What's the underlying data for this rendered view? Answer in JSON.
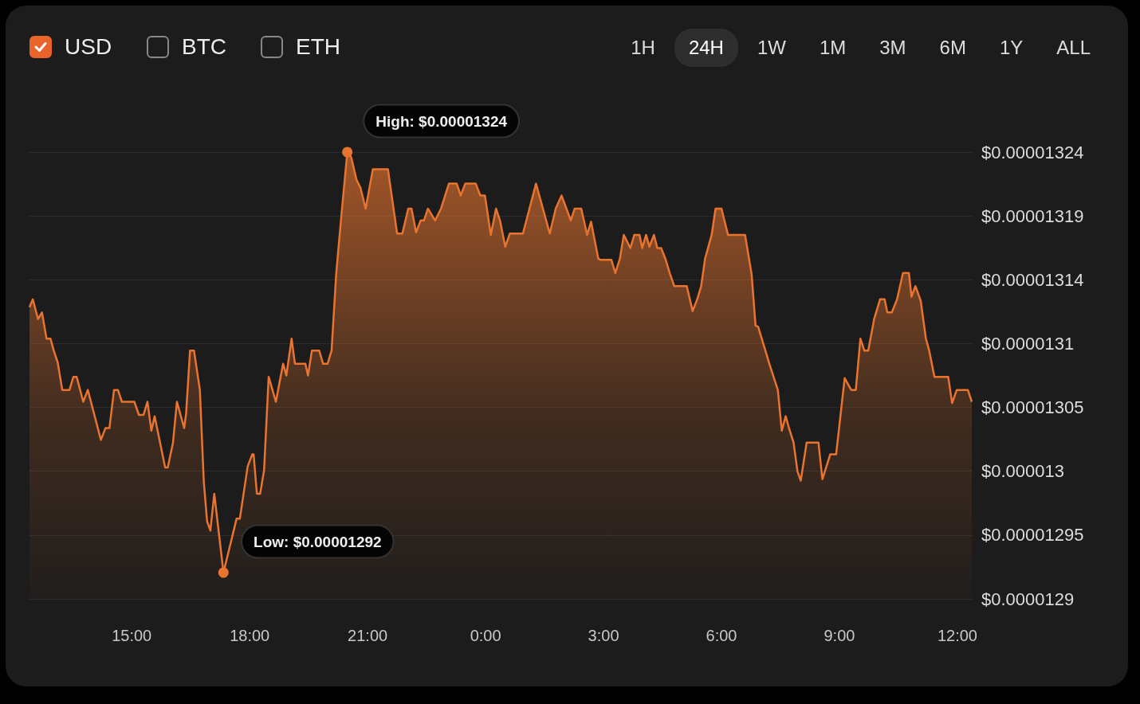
{
  "chart_data": {
    "type": "area",
    "annotations": [
      "USD",
      "BTC",
      "ETH",
      "1H",
      "24H",
      "1W",
      "1M",
      "3M",
      "6M",
      "1Y",
      "ALL",
      {
        "text": "High: $0.00001324",
        "x": "--01-01T20:29",
        "y": 1.324e-05
      },
      {
        "text": "Low: $0.00001292",
        "x": "--01-01T17:20",
        "y": 1.292e-05
      }
    ],
    "x": [
      "--01-01T12:24",
      "--01-01T12:29",
      "--01-01T12:37",
      "--01-01T12:43",
      "--01-01T12:50",
      "--01-01T12:56",
      "--01-01T13:01",
      "--01-01T13:07",
      "--01-01T13:14",
      "--01-01T13:25",
      "--01-01T13:31",
      "--01-01T13:36",
      "--01-01T13:46",
      "--01-01T13:53",
      "--01-01T14:13",
      "--01-01T14:20",
      "--01-01T14:26",
      "--01-01T14:33",
      "--01-01T14:39",
      "--01-01T14:45",
      "--01-01T15:04",
      "--01-01T15:11",
      "--01-01T15:18",
      "--01-01T15:24",
      "--01-01T15:30",
      "--01-01T15:35",
      "--01-01T15:42",
      "--01-01T15:51",
      "--01-01T15:55",
      "--01-01T16:03",
      "--01-01T16:09",
      "--01-01T16:20",
      "--01-01T16:23",
      "--01-01T16:29",
      "--01-01T16:35",
      "--01-01T16:44",
      "--01-01T16:50",
      "--01-01T16:55",
      "--01-01T17:00",
      "--01-01T17:06",
      "--01-01T17:13",
      "--01-01T17:20",
      "--01-01T17:40",
      "--01-01T17:45",
      "--01-01T17:57",
      "--01-01T18:04",
      "--01-01T18:06",
      "--01-01T18:11",
      "--01-01T18:16",
      "--01-01T18:22",
      "--01-01T18:29",
      "--01-01T18:40",
      "--01-01T18:51",
      "--01-01T18:56",
      "--01-01T19:04",
      "--01-01T19:09",
      "--01-01T19:25",
      "--01-01T19:29",
      "--01-01T19:35",
      "--01-01T19:46",
      "--01-01T19:52",
      "--01-01T19:59",
      "--01-01T20:05",
      "--01-01T20:12",
      "--01-01T20:20",
      "--01-01T20:29",
      "--01-01T20:35",
      "--01-01T20:43",
      "--01-01T20:49",
      "--01-01T20:57",
      "--01-01T21:08",
      "--01-01T21:31",
      "--01-01T21:45",
      "--01-01T21:53",
      "--01-01T22:02",
      "--01-01T22:07",
      "--01-01T22:14",
      "--01-01T22:21",
      "--01-01T22:26",
      "--01-01T22:32",
      "--01-01T22:43",
      "--01-01T22:52",
      "--01-01T23:04",
      "--01-01T23:16",
      "--01-01T23:22",
      "--01-01T23:29",
      "--01-01T23:45",
      "--01-01T23:52",
      "--01-01T23:59",
      "--01-02T00:08",
      "--01-02T00:16",
      "--01-02T00:22",
      "--01-02T00:30",
      "--01-02T00:37",
      "--01-02T00:57",
      "--01-02T01:17",
      "--01-02T01:38",
      "--01-02T01:47",
      "--01-02T01:56",
      "--01-02T02:10",
      "--01-02T02:16",
      "--01-02T02:26",
      "--01-02T02:35",
      "--01-02T02:41",
      "--01-02T02:52",
      "--01-02T02:55",
      "--01-02T03:12",
      "--01-02T03:18",
      "--01-02T03:25",
      "--01-02T03:31",
      "--01-02T03:41",
      "--01-02T03:47",
      "--01-02T03:55",
      "--01-02T03:59",
      "--01-02T04:05",
      "--01-02T04:10",
      "--01-02T04:17",
      "--01-02T04:22",
      "--01-02T04:28",
      "--01-02T04:35",
      "--01-02T04:41",
      "--01-02T04:48",
      "--01-02T05:07",
      "--01-02T05:16",
      "--01-02T05:23",
      "--01-02T05:29",
      "--01-02T05:35",
      "--01-02T05:45",
      "--01-02T05:51",
      "--01-02T06:00",
      "--01-02T06:10",
      "--01-02T06:36",
      "--01-02T06:46",
      "--01-02T06:52",
      "--01-02T06:56",
      "--01-02T07:07",
      "--01-02T07:13",
      "--01-02T07:26",
      "--01-02T07:32",
      "--01-02T07:38",
      "--01-02T07:43",
      "--01-02T07:50",
      "--01-02T07:56",
      "--01-02T08:01",
      "--01-02T08:10",
      "--01-02T08:28",
      "--01-02T08:34",
      "--01-02T08:46",
      "--01-02T08:55",
      "--01-02T09:08",
      "--01-02T09:18",
      "--01-02T09:25",
      "--01-02T09:32",
      "--01-02T09:38",
      "--01-02T09:44",
      "--01-02T09:53",
      "--01-02T10:02",
      "--01-02T10:09",
      "--01-02T10:13",
      "--01-02T10:20",
      "--01-02T10:28",
      "--01-02T10:37",
      "--01-02T10:46",
      "--01-02T10:50",
      "--01-02T10:56",
      "--01-02T11:04",
      "--01-02T11:12",
      "--01-02T11:17",
      "--01-02T11:25",
      "--01-02T11:46",
      "--01-02T11:52",
      "--01-02T11:59",
      "--01-02T12:16",
      "--01-02T12:22"
    ],
    "series": [
      {
        "color": "#e8742f",
        "values": [
          1.3122e-05,
          1.3128e-05,
          1.3113e-05,
          1.3118e-05,
          1.3098e-05,
          1.3098e-05,
          1.3089e-05,
          1.308e-05,
          1.3059e-05,
          1.3059e-05,
          1.3069e-05,
          1.3069e-05,
          1.305e-05,
          1.3059e-05,
          1.3021e-05,
          1.303e-05,
          1.303e-05,
          1.3059e-05,
          1.3059e-05,
          1.305e-05,
          1.305e-05,
          1.304e-05,
          1.304e-05,
          1.305e-05,
          1.3028e-05,
          1.3039e-05,
          1.3022e-05,
          1.3e-05,
          1.3e-05,
          1.3019e-05,
          1.305e-05,
          1.303e-05,
          1.3041e-05,
          1.3089e-05,
          1.3089e-05,
          1.3059e-05,
          1.2989e-05,
          1.2959e-05,
          1.2952e-05,
          1.298e-05,
          1.295e-05,
          1.292e-05,
          1.2961e-05,
          1.2961e-05,
          1.3001e-05,
          1.301e-05,
          1.301e-05,
          1.298e-05,
          1.298e-05,
          1.2998e-05,
          1.3069e-05,
          1.305e-05,
          1.3079e-05,
          1.307e-05,
          1.3098e-05,
          1.3079e-05,
          1.3079e-05,
          1.307e-05,
          1.3089e-05,
          1.3089e-05,
          1.3079e-05,
          1.3079e-05,
          1.3089e-05,
          1.3147e-05,
          1.3192e-05,
          1.324e-05,
          1.3236e-05,
          1.3219e-05,
          1.3213e-05,
          1.3197e-05,
          1.3227e-05,
          1.3227e-05,
          1.3178e-05,
          1.3178e-05,
          1.3197e-05,
          1.3197e-05,
          1.3179e-05,
          1.3188e-05,
          1.3188e-05,
          1.3197e-05,
          1.3188e-05,
          1.3197e-05,
          1.3216e-05,
          1.3216e-05,
          1.3207e-05,
          1.3216e-05,
          1.3216e-05,
          1.3207e-05,
          1.3207e-05,
          1.3177e-05,
          1.3197e-05,
          1.3188e-05,
          1.3168e-05,
          1.3178e-05,
          1.3178e-05,
          1.3216e-05,
          1.3178e-05,
          1.3197e-05,
          1.3207e-05,
          1.3188e-05,
          1.3197e-05,
          1.3197e-05,
          1.3177e-05,
          1.3187e-05,
          1.3159e-05,
          1.3158e-05,
          1.3158e-05,
          1.3148e-05,
          1.3159e-05,
          1.3177e-05,
          1.3167e-05,
          1.3177e-05,
          1.3177e-05,
          1.3167e-05,
          1.3177e-05,
          1.3168e-05,
          1.3177e-05,
          1.3167e-05,
          1.3167e-05,
          1.3158e-05,
          1.3148e-05,
          1.3138e-05,
          1.3138e-05,
          1.3119e-05,
          1.3128e-05,
          1.3138e-05,
          1.3159e-05,
          1.3177e-05,
          1.3197e-05,
          1.3197e-05,
          1.3177e-05,
          1.3177e-05,
          1.3147e-05,
          1.3108e-05,
          1.3107e-05,
          1.3089e-05,
          1.3079e-05,
          1.3059e-05,
          1.3028e-05,
          1.3039e-05,
          1.303e-05,
          1.3019e-05,
          1.2997e-05,
          1.299e-05,
          1.3019e-05,
          1.3019e-05,
          1.2991e-05,
          1.301e-05,
          1.301e-05,
          1.3068e-05,
          1.3059e-05,
          1.3059e-05,
          1.3098e-05,
          1.3089e-05,
          1.3089e-05,
          1.3113e-05,
          1.3128e-05,
          1.3128e-05,
          1.3118e-05,
          1.3118e-05,
          1.3128e-05,
          1.3148e-05,
          1.3148e-05,
          1.313e-05,
          1.3138e-05,
          1.3127e-05,
          1.3098e-05,
          1.3089e-05,
          1.3069e-05,
          1.3069e-05,
          1.3049e-05,
          1.3059e-05,
          1.3059e-05,
          1.305e-05
        ]
      }
    ],
    "xlim": [
      "--01-01T12:24",
      "--01-02T12:22"
    ],
    "xticks": [
      {
        "value": "--01-01T15:00",
        "label": "15:00"
      },
      {
        "value": "--01-01T18:00",
        "label": "18:00"
      },
      {
        "value": "--01-01T21:00",
        "label": "21:00"
      },
      {
        "value": "--01-02T00:00",
        "label": "0:00"
      },
      {
        "value": "--01-02T03:00",
        "label": "3:00"
      },
      {
        "value": "--01-02T06:00",
        "label": "6:00"
      },
      {
        "value": "--01-02T09:00",
        "label": "9:00"
      },
      {
        "value": "--01-02T12:00",
        "label": "12:00"
      }
    ],
    "ylim": [
      1.29e-05,
      1.324e-05
    ],
    "yticks": [
      {
        "value": 1.29e-05,
        "label": "$0.0000129"
      },
      {
        "value": 1.294857e-05,
        "label": "$0.00001295"
      },
      {
        "value": 1.299714e-05,
        "label": "$0.000013"
      },
      {
        "value": 1.304571e-05,
        "label": "$0.00001305"
      },
      {
        "value": 1.309429e-05,
        "label": "$0.0000131"
      },
      {
        "value": 1.314286e-05,
        "label": "$0.00001314"
      },
      {
        "value": 1.319143e-05,
        "label": "$0.00001319"
      },
      {
        "value": 1.324e-05,
        "label": "$0.00001324"
      }
    ],
    "grid": "y"
  }
}
